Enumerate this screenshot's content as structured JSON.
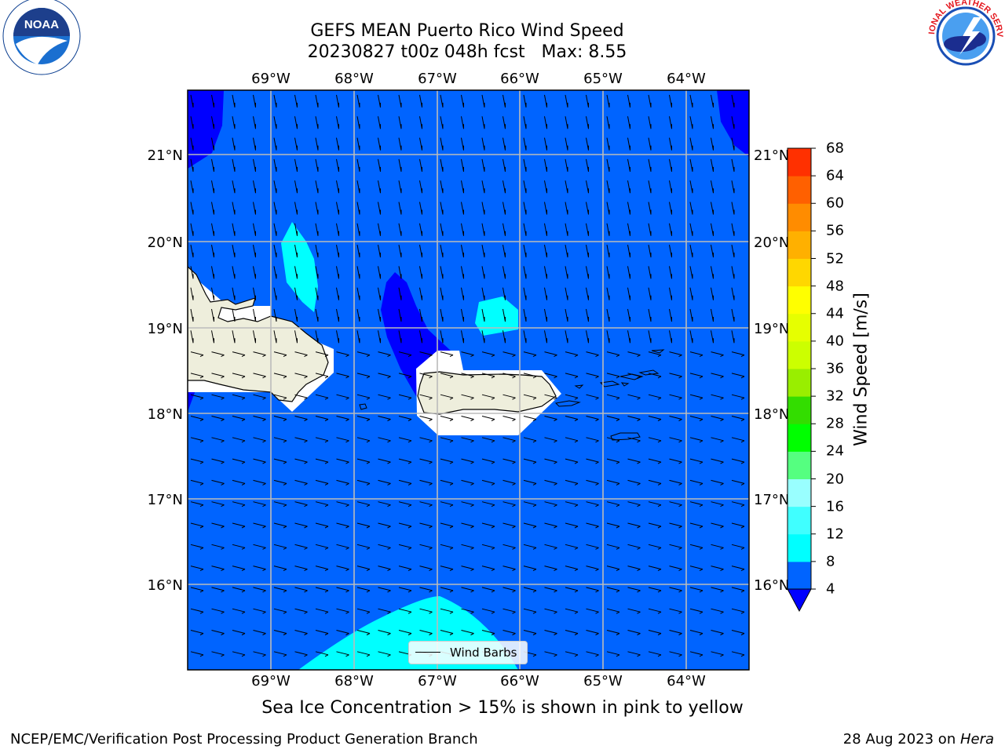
{
  "title": {
    "line1": "GEFS MEAN Puerto Rico Wind Speed",
    "line2": "20230827 t00z 048h fcst   Max: 8.55"
  },
  "logos": {
    "left": {
      "name": "noaa-logo",
      "text": "NOAA"
    },
    "right": {
      "name": "nws-logo",
      "text": "NATIONAL WEATHER SERVICE"
    }
  },
  "map": {
    "lon_labels": [
      "69°W",
      "68°W",
      "67°W",
      "66°W",
      "65°W",
      "64°W"
    ],
    "lat_labels": [
      "21°N",
      "20°N",
      "19°N",
      "18°N",
      "17°N",
      "16°N"
    ],
    "legend_label": "Wind Barbs",
    "colors": {
      "ocean_4_8": "#0064ff",
      "deep_lt4": "#0000ff",
      "cyan_8_12": "#00ffff",
      "cyan_12_16": "#40ffff",
      "land": "#eeeedc"
    }
  },
  "colorbar": {
    "label": "Wind Speed [m/s]",
    "ticks": [
      "4",
      "8",
      "12",
      "16",
      "20",
      "24",
      "28",
      "32",
      "36",
      "40",
      "44",
      "48",
      "52",
      "56",
      "60",
      "64",
      "68"
    ],
    "colors": [
      "#0064ff",
      "#00ffff",
      "#40ffff",
      "#99ffff",
      "#55ff80",
      "#00ff00",
      "#33dd00",
      "#99ee00",
      "#ccff00",
      "#e6ff00",
      "#ffff00",
      "#ffd700",
      "#ffb000",
      "#ff8c00",
      "#ff6000",
      "#ff3000",
      "#ff0000"
    ],
    "under_color": "#0000ff"
  },
  "note": "Sea Ice Concentration > 15% is shown in pink to yellow",
  "footer": {
    "left": "NCEP/EMC/Verification Post Processing Product Generation Branch",
    "right_prefix": "28 Aug 2023 on ",
    "right_machine": "Hera"
  }
}
